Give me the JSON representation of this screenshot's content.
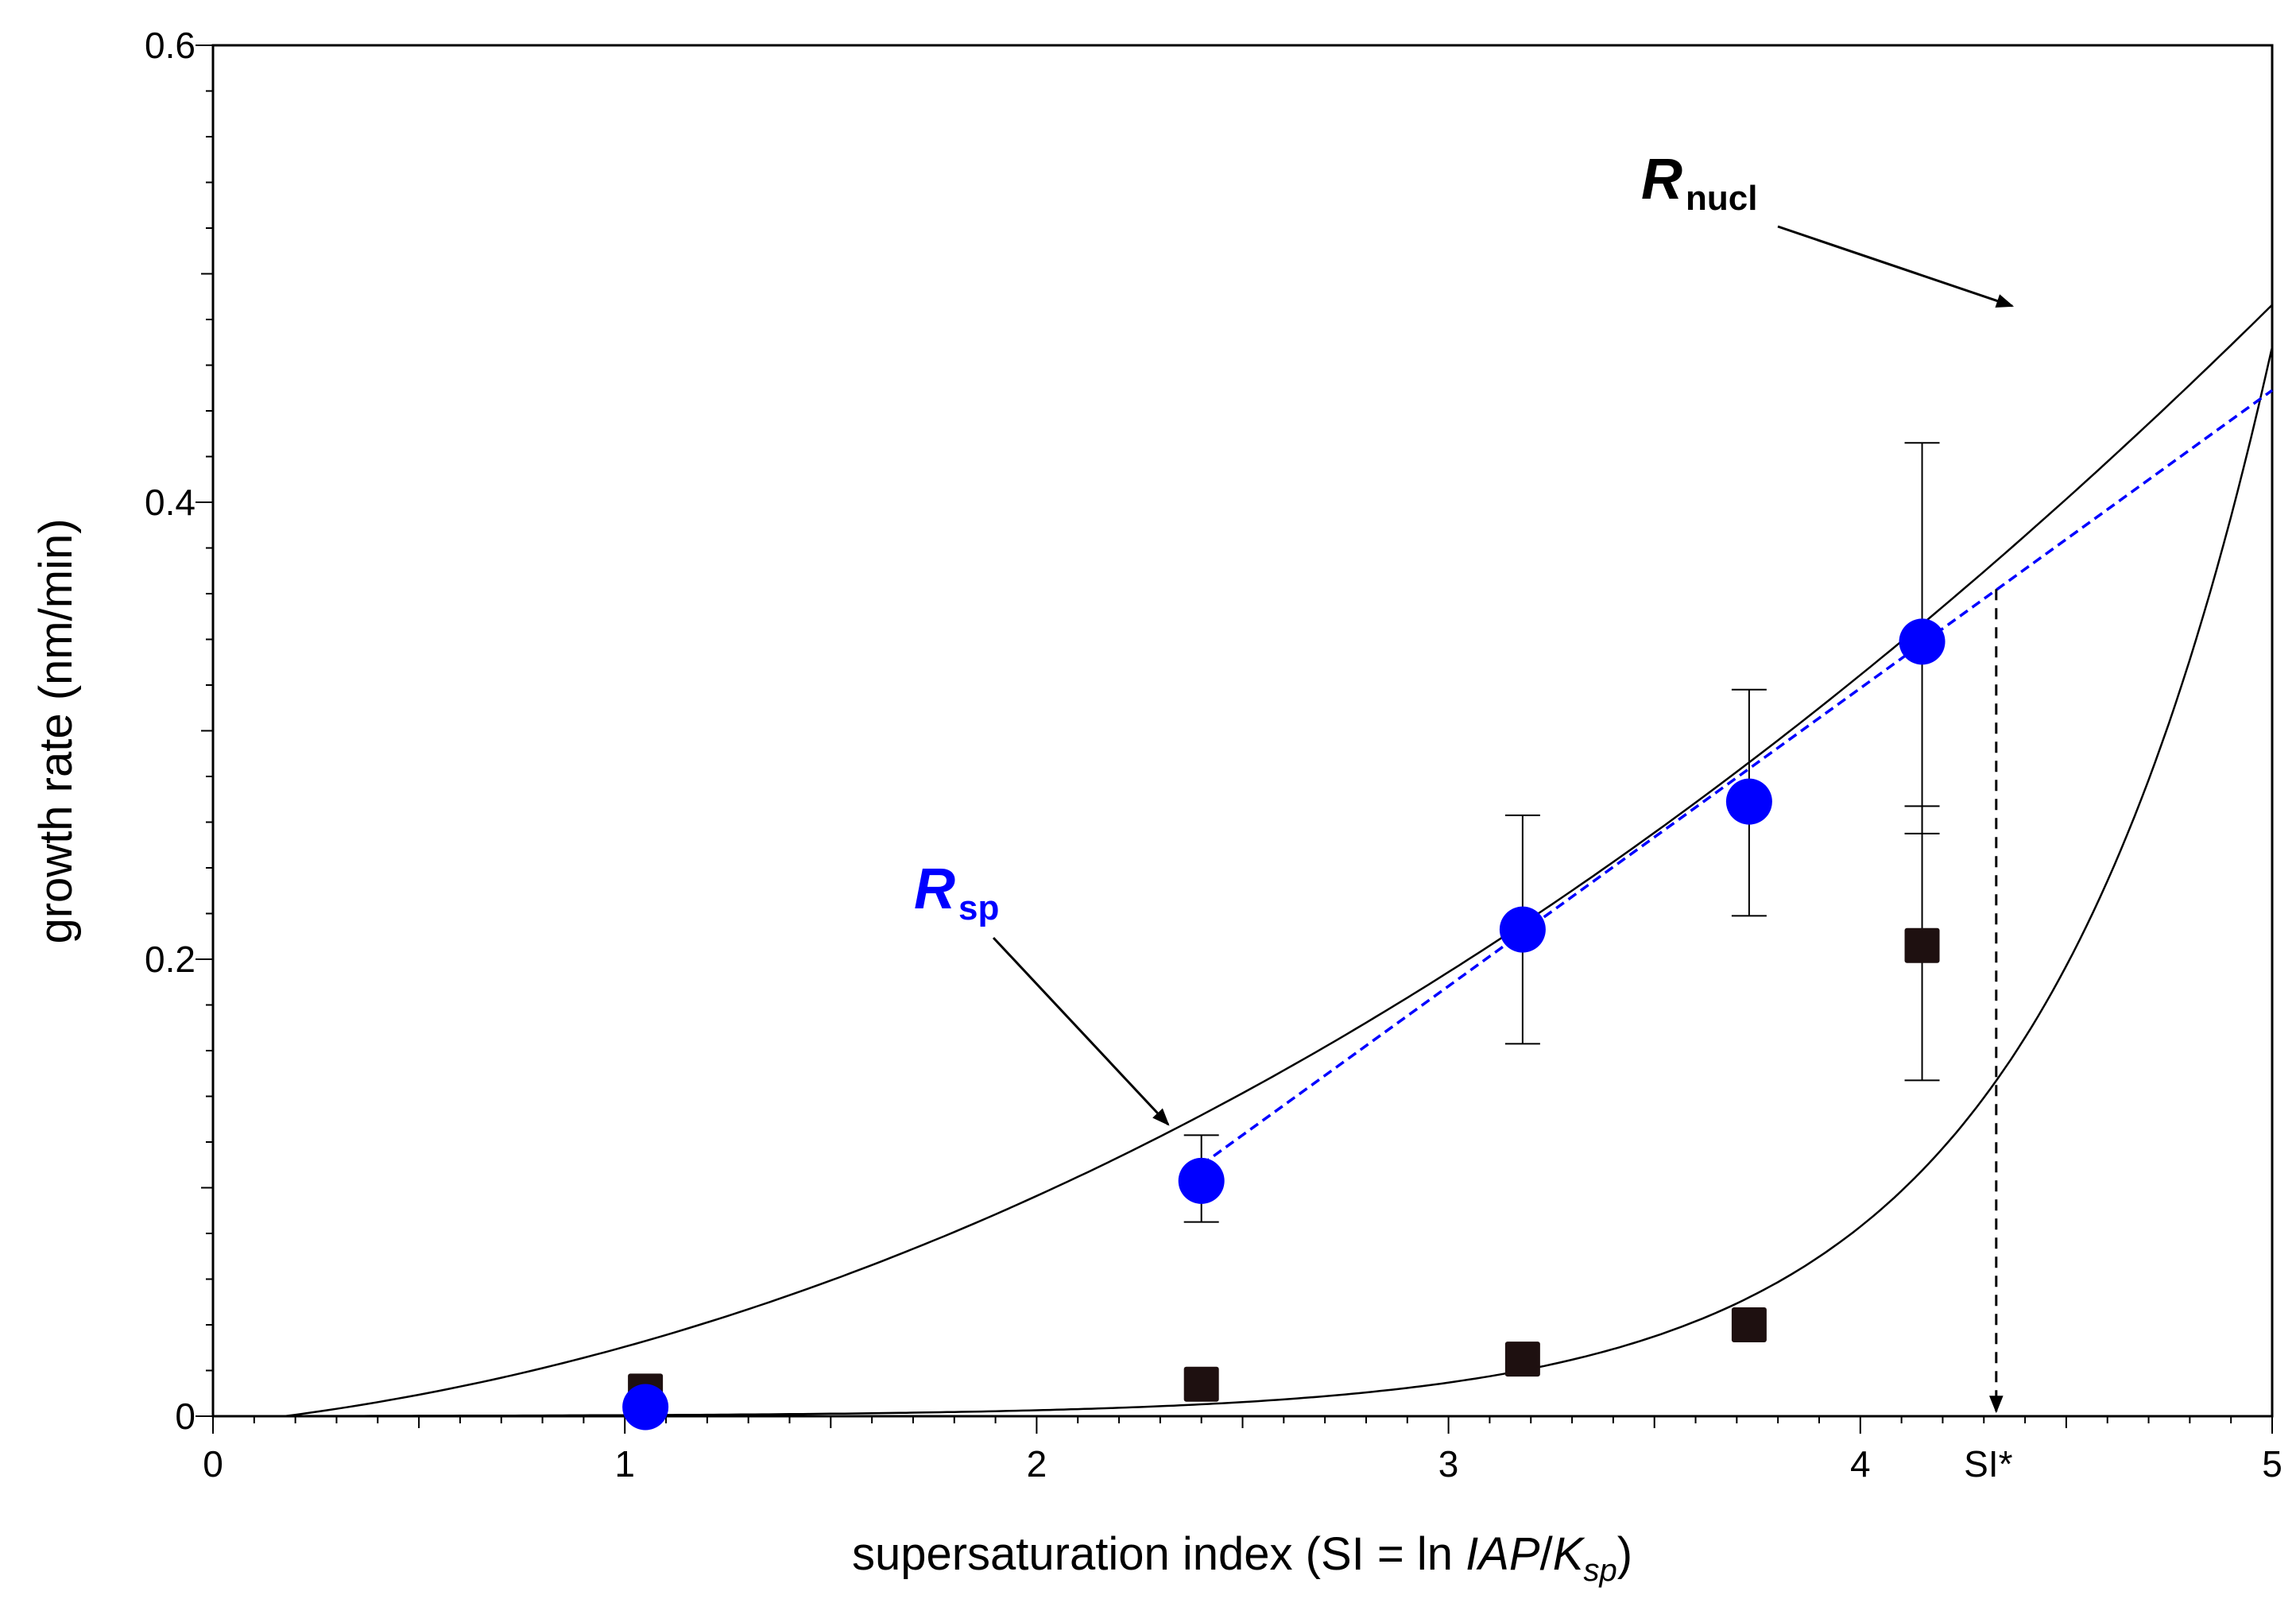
{
  "chart_data": {
    "type": "scatter",
    "xlabel": "supersaturation index (SI = ln IAP/Ksp)",
    "xlabel_parts": {
      "prefix": "supersaturation index (SI = ln ",
      "iap": "IAP",
      "slash": "/",
      "k": "K",
      "k_sub": "sp",
      "suffix": ")"
    },
    "ylabel": "growth rate (nm/min)",
    "xlim": [
      0,
      5
    ],
    "ylim": [
      0,
      0.6
    ],
    "x_ticks": [
      "0",
      "1",
      "2",
      "3",
      "4",
      "5"
    ],
    "y_ticks": [
      "0",
      "0.2",
      "0.4",
      "0.6"
    ],
    "grid": false,
    "series": [
      {
        "marker": "circle",
        "color": "#0000ff",
        "points": [
          {
            "x": 1.05,
            "y": 0.004
          },
          {
            "x": 2.4,
            "y": 0.103,
            "err_low": 0.085,
            "err_high": 0.123
          },
          {
            "x": 3.18,
            "y": 0.213,
            "err_low": 0.163,
            "err_high": 0.263
          },
          {
            "x": 3.73,
            "y": 0.269,
            "err_low": 0.219,
            "err_high": 0.318
          },
          {
            "x": 4.15,
            "y": 0.339,
            "err_low": 0.255,
            "err_high": 0.426
          }
        ]
      },
      {
        "marker": "square",
        "color": "#1e1010",
        "points": [
          {
            "x": 1.05,
            "y": 0.011
          },
          {
            "x": 2.4,
            "y": 0.014
          },
          {
            "x": 3.18,
            "y": 0.025
          },
          {
            "x": 3.73,
            "y": 0.04
          },
          {
            "x": 4.15,
            "y": 0.206,
            "err_low": 0.147,
            "err_high": 0.267
          }
        ]
      }
    ],
    "curves": {
      "nucleation_fit": {
        "color": "#000000"
      },
      "growth_fit": {
        "color": "#000000"
      },
      "linear_fit": {
        "color": "#0000ff",
        "dashed": true,
        "x_start": 2.4,
        "y_start": 0.11,
        "x_end": 5.0,
        "y_end": 0.449
      }
    },
    "annotations": {
      "r_nucl": {
        "main": "R",
        "sub": "nucl"
      },
      "r_sp": {
        "main": "R",
        "sub": "sp",
        "color": "#0000ff"
      },
      "si_star": {
        "label": "SI*",
        "x": 4.33
      }
    }
  }
}
